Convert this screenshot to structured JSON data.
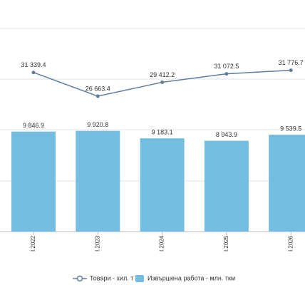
{
  "chart_data": {
    "type": "combo",
    "categories": [
      "I.2022",
      "I.2023",
      "I.2024",
      "I.2025",
      "I.2026"
    ],
    "series": [
      {
        "name": "Товари - хил. т",
        "type": "line",
        "axis": "y2",
        "color": "#5f7d99",
        "values": [
          31339.4,
          26663.4,
          29412.2,
          31072.5,
          31776.7
        ],
        "value_labels": [
          "31 339.4",
          "26 663.4",
          "29 412.2",
          "31 072.5",
          "31 776.7"
        ]
      },
      {
        "name": "Извършена работа - млн. ткм",
        "type": "bar",
        "color": "#72bde0",
        "values": [
          9846.9,
          9920.8,
          9183.1,
          8943.9,
          9539.5
        ],
        "value_labels": [
          "9 846.9",
          "9 920.8",
          "9 183.1",
          "8 943.9",
          "9 539.5"
        ]
      }
    ],
    "ylim": [
      0,
      20000
    ],
    "y2lim": [
      0,
      40000
    ],
    "grid": true
  }
}
